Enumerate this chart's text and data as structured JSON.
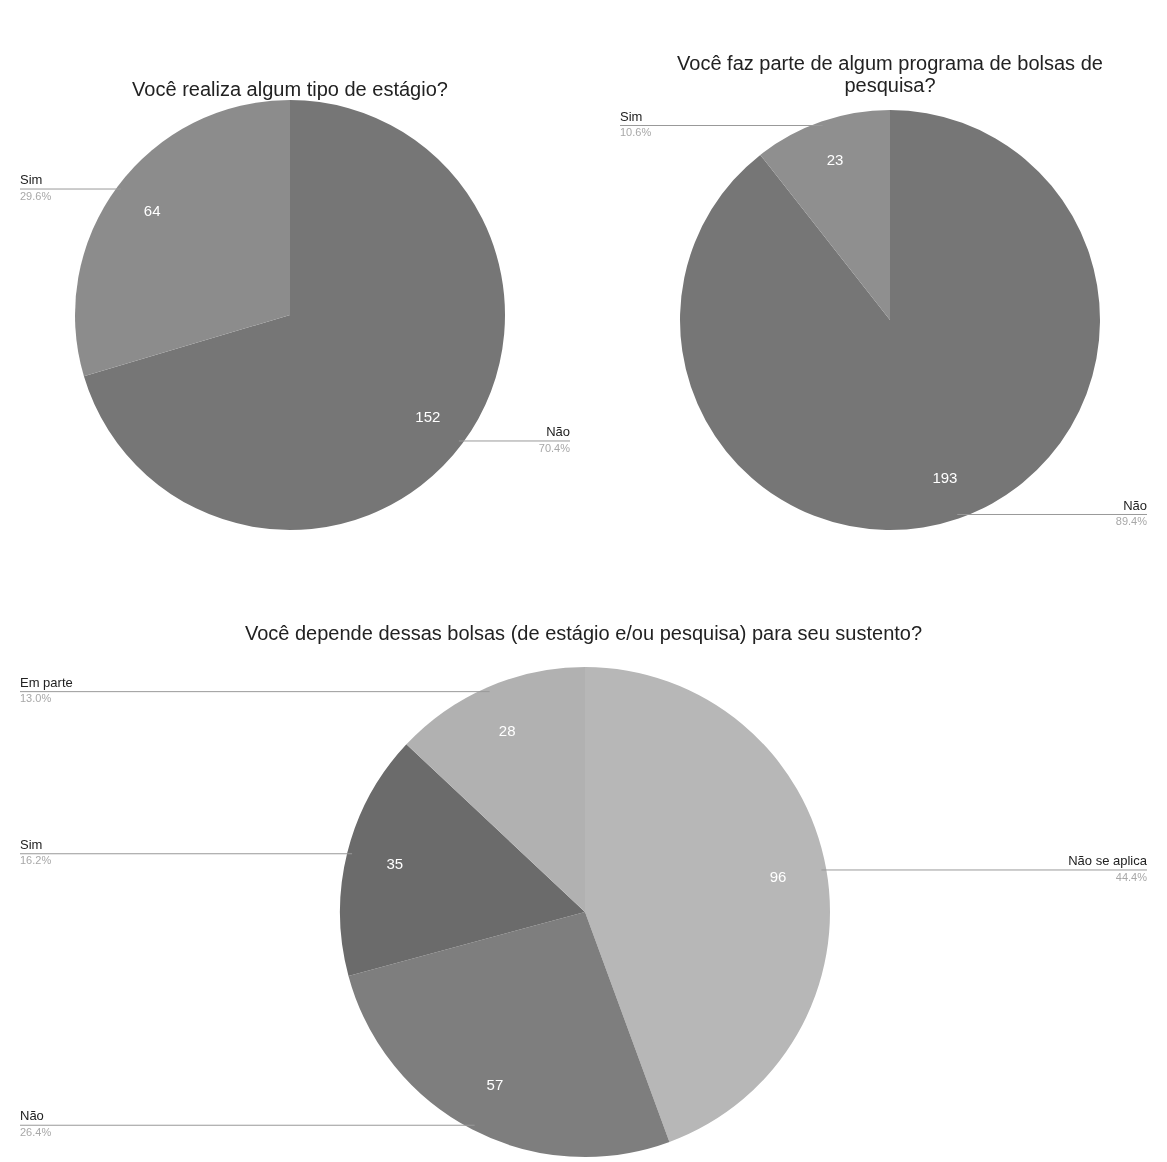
{
  "chart_data": [
    {
      "type": "pie",
      "title": "Você realiza algum tipo de estágio?",
      "categories": [
        "Não",
        "Sim"
      ],
      "values": [
        70.4,
        29.6
      ],
      "colors": [
        "#767676",
        "#8c8c8c"
      ],
      "value_labels": [
        "70.4%",
        "29.6%"
      ],
      "annotations": [
        {
          "text": "152",
          "x": "Não"
        },
        {
          "text": "64",
          "x": "Sim"
        }
      ]
    },
    {
      "type": "pie",
      "title": "Você faz parte de algum programa de bolsas de pesquisa?",
      "categories": [
        "Não",
        "Sim"
      ],
      "values": [
        89.4,
        10.6
      ],
      "colors": [
        "#767676",
        "#8f8f8f"
      ],
      "value_labels": [
        "89.4%",
        "10.6%"
      ],
      "annotations": [
        {
          "text": "193",
          "x": "Não"
        },
        {
          "text": "23",
          "x": "Sim"
        }
      ]
    },
    {
      "type": "pie",
      "title": "Você depende dessas bolsas (de estágio e/ou pesquisa) para seu sustento?",
      "categories": [
        "Não se aplica",
        "Não",
        "Sim",
        "Em parte"
      ],
      "values": [
        44.4,
        26.4,
        16.2,
        13.0
      ],
      "colors": [
        "#b7b7b7",
        "#7e7e7e",
        "#6b6b6b",
        "#b1b1b1"
      ],
      "value_labels": [
        "44.4%",
        "26.4%",
        "16.2%",
        "13.0%"
      ],
      "annotations": [
        {
          "text": "96",
          "x": "Não se aplica"
        },
        {
          "text": "57",
          "x": "Não"
        },
        {
          "text": "35",
          "x": "Sim"
        },
        {
          "text": "28",
          "x": "Em parte"
        }
      ]
    }
  ]
}
